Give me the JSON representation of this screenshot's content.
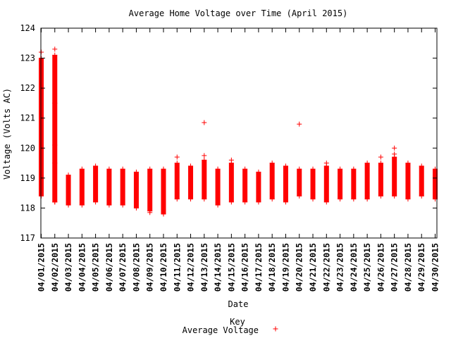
{
  "chart_data": {
    "type": "scatter",
    "title": "Average Home Voltage over Time (April 2015)",
    "xlabel": "Date",
    "ylabel": "Voltage (Volts AC)",
    "ylim": [
      117,
      124
    ],
    "yticks": [
      "117",
      "118",
      "119",
      "120",
      "121",
      "122",
      "123",
      "124"
    ],
    "grid": false,
    "legend_position": "bottom-center",
    "legend_title": "Key",
    "categories": [
      "04/01/2015",
      "04/02/2015",
      "04/03/2015",
      "04/04/2015",
      "04/05/2015",
      "04/06/2015",
      "04/07/2015",
      "04/08/2015",
      "04/09/2015",
      "04/10/2015",
      "04/11/2015",
      "04/12/2015",
      "04/13/2015",
      "04/14/2015",
      "04/15/2015",
      "04/16/2015",
      "04/17/2015",
      "04/18/2015",
      "04/19/2015",
      "04/20/2015",
      "04/21/2015",
      "04/22/2015",
      "04/23/2015",
      "04/24/2015",
      "04/25/2015",
      "04/26/2015",
      "04/27/2015",
      "04/28/2015",
      "04/29/2015",
      "04/30/2015"
    ],
    "series": [
      {
        "name": "Average Voltage",
        "color": "#ff0000",
        "marker": "plus",
        "ranges": [
          [
            118.4,
            123.0
          ],
          [
            118.2,
            123.1
          ],
          [
            118.1,
            119.1
          ],
          [
            118.1,
            119.3
          ],
          [
            118.2,
            119.4
          ],
          [
            118.1,
            119.3
          ],
          [
            118.1,
            119.3
          ],
          [
            118.0,
            119.2
          ],
          [
            117.9,
            119.3
          ],
          [
            117.8,
            119.3
          ],
          [
            118.3,
            119.5
          ],
          [
            118.3,
            119.4
          ],
          [
            118.3,
            119.6
          ],
          [
            118.1,
            119.3
          ],
          [
            118.2,
            119.5
          ],
          [
            118.2,
            119.3
          ],
          [
            118.2,
            119.2
          ],
          [
            118.3,
            119.5
          ],
          [
            118.2,
            119.4
          ],
          [
            118.4,
            119.3
          ],
          [
            118.3,
            119.3
          ],
          [
            118.2,
            119.4
          ],
          [
            118.3,
            119.3
          ],
          [
            118.3,
            119.3
          ],
          [
            118.3,
            119.5
          ],
          [
            118.4,
            119.5
          ],
          [
            118.4,
            119.7
          ],
          [
            118.3,
            119.5
          ],
          [
            118.4,
            119.4
          ],
          [
            118.3,
            119.3
          ]
        ],
        "outliers": [
          {
            "x": "04/01/2015",
            "y": 123.2
          },
          {
            "x": "04/01/2015",
            "y": 120.3
          },
          {
            "x": "04/01/2015",
            "y": 120.1
          },
          {
            "x": "04/01/2015",
            "y": 119.6
          },
          {
            "x": "04/02/2015",
            "y": 123.3
          },
          {
            "x": "04/02/2015",
            "y": 121.5
          },
          {
            "x": "04/02/2015",
            "y": 120.1
          },
          {
            "x": "04/02/2015",
            "y": 119.5
          },
          {
            "x": "04/02/2015",
            "y": 118.2
          },
          {
            "x": "04/09/2015",
            "y": 117.85
          },
          {
            "x": "04/10/2015",
            "y": 117.8
          },
          {
            "x": "04/10/2015",
            "y": 117.95
          },
          {
            "x": "04/11/2015",
            "y": 119.7
          },
          {
            "x": "04/13/2015",
            "y": 120.85
          },
          {
            "x": "04/13/2015",
            "y": 119.75
          },
          {
            "x": "04/15/2015",
            "y": 119.6
          },
          {
            "x": "04/20/2015",
            "y": 120.8
          },
          {
            "x": "04/22/2015",
            "y": 119.5
          },
          {
            "x": "04/26/2015",
            "y": 119.7
          },
          {
            "x": "04/27/2015",
            "y": 120.0
          },
          {
            "x": "04/27/2015",
            "y": 119.8
          }
        ]
      }
    ]
  }
}
